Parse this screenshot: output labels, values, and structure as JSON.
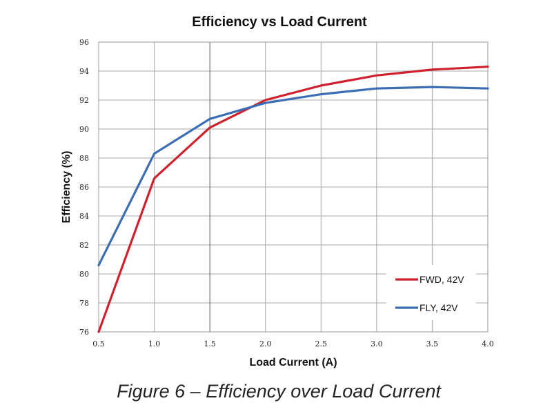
{
  "chart_data": {
    "type": "line",
    "title": "Efficiency vs Load Current",
    "xlabel": "Load Current (A)",
    "ylabel": "Efficiency (%)",
    "xlim": [
      0.5,
      4.0
    ],
    "ylim": [
      76,
      96
    ],
    "x_ticks": [
      "0.5",
      "1.0",
      "1.5",
      "2.0",
      "2.5",
      "3.0",
      "3.5",
      "4.0"
    ],
    "y_ticks": [
      "76",
      "78",
      "80",
      "82",
      "84",
      "86",
      "88",
      "90",
      "92",
      "94",
      "96"
    ],
    "grid": true,
    "legend_position": "bottom-right",
    "series": [
      {
        "name": "FWD, 42V",
        "color": "#d0202e",
        "x": [
          0.5,
          1.0,
          1.5,
          2.0,
          2.5,
          3.0,
          3.5,
          4.0
        ],
        "y": [
          76.0,
          86.6,
          90.1,
          92.0,
          93.0,
          93.7,
          94.1,
          94.3
        ]
      },
      {
        "name": "FLY, 42V",
        "color": "#3a6db5",
        "x": [
          0.5,
          1.0,
          1.5,
          2.0,
          2.5,
          3.0,
          3.5,
          4.0
        ],
        "y": [
          80.6,
          88.3,
          90.7,
          91.8,
          92.4,
          92.8,
          92.9,
          92.8
        ]
      }
    ]
  },
  "caption": "Figure 6 – Efficiency over Load Current"
}
